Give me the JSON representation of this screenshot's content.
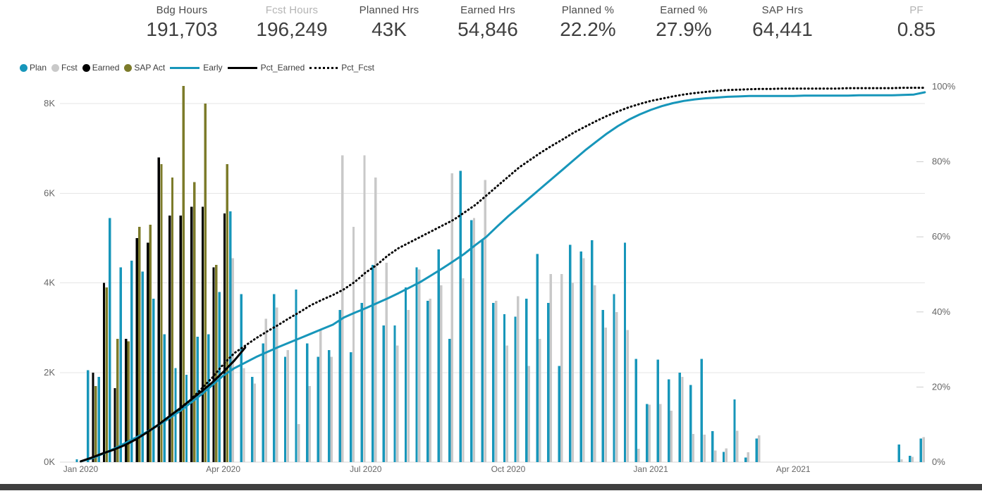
{
  "kpis": [
    {
      "label": "Bdg Hours",
      "value": "191,703",
      "muted": false
    },
    {
      "label": "Fcst Hours",
      "value": "196,249",
      "muted": true
    },
    {
      "label": "Planned Hrs",
      "value": "43K",
      "muted": false
    },
    {
      "label": "Earned Hrs",
      "value": "54,846",
      "muted": false
    },
    {
      "label": "Planned %",
      "value": "22.2%",
      "muted": false
    },
    {
      "label": "Earned %",
      "value": "27.9%",
      "muted": false
    },
    {
      "label": "SAP Hrs",
      "value": "64,441",
      "muted": false
    },
    {
      "label": "PF",
      "value": "0.85",
      "muted": true
    }
  ],
  "colors": {
    "plan": "#1796ba",
    "fcst": "#c9c9c9",
    "earned": "#000000",
    "sap": "#7c7b2a",
    "axis_text": "#666666",
    "grid": "#e6e6e6",
    "footer": "#3f3f3f"
  },
  "legend": [
    {
      "label": "Plan",
      "swatch": "dot",
      "color": "#1796ba"
    },
    {
      "label": "Fcst",
      "swatch": "dot",
      "color": "#c9c9c9"
    },
    {
      "label": "Earned",
      "swatch": "dot",
      "color": "#000000"
    },
    {
      "label": "SAP Act",
      "swatch": "dot",
      "color": "#7c7b2a"
    },
    {
      "label": "Early",
      "swatch": "line",
      "color": "#1796ba"
    },
    {
      "label": "Pct_Earned",
      "swatch": "line",
      "color": "#000000"
    },
    {
      "label": "Pct_Fcst",
      "swatch": "dotted",
      "color": "#000000"
    }
  ],
  "chart_data": {
    "type": "combo (weekly bars + cumulative % lines)",
    "x_ticks": [
      {
        "label": "Jan 2020",
        "week": 1
      },
      {
        "label": "Apr 2020",
        "week": 14
      },
      {
        "label": "Jul 2020",
        "week": 27
      },
      {
        "label": "Oct 2020",
        "week": 40
      },
      {
        "label": "Jan 2021",
        "week": 53
      },
      {
        "label": "Apr 2021",
        "week": 66
      }
    ],
    "y_left": {
      "title": "hours per week",
      "ticks": [
        "0K",
        "2K",
        "4K",
        "6K",
        "8K"
      ],
      "tick_values": [
        0,
        2000,
        4000,
        6000,
        8000
      ],
      "max": 8400
    },
    "y_right": {
      "title": "cumulative percent",
      "ticks": [
        "0%",
        "20%",
        "40%",
        "60%",
        "80%",
        "100%"
      ],
      "tick_values": [
        0,
        20,
        40,
        60,
        80,
        100
      ]
    },
    "grid": true,
    "legend_position": "top-left",
    "bar_series": [
      {
        "name": "Plan",
        "color": "#1796ba",
        "offset": -7.2,
        "values": [
          60,
          2050,
          1900,
          5450,
          4350,
          4500,
          4250,
          3650,
          2850,
          2100,
          1950,
          2800,
          2850,
          3800,
          5600,
          3750,
          1900,
          2650,
          3750,
          2350,
          3850,
          2650,
          2350,
          2500,
          3400,
          2450,
          3550,
          4400,
          3050,
          3050,
          3900,
          4350,
          3600,
          4750,
          2750,
          6500,
          5400,
          4950,
          3550,
          3300,
          3250,
          3650,
          4650,
          3550,
          2150,
          4850,
          4700,
          4950,
          3400,
          3750,
          4900,
          2300,
          1300,
          2290,
          1850,
          2000,
          1720,
          2300,
          690,
          230,
          1400,
          100,
          530,
          null,
          null,
          null,
          null,
          null,
          null,
          null,
          null,
          null,
          null,
          null,
          null,
          390,
          140,
          530
        ]
      },
      {
        "name": "Fcst",
        "color": "#c9c9c9",
        "offset": -3.5,
        "values": [
          null,
          null,
          null,
          null,
          null,
          null,
          null,
          null,
          null,
          null,
          null,
          null,
          null,
          null,
          4550,
          2100,
          1750,
          3200,
          3450,
          2500,
          850,
          1700,
          2950,
          2350,
          6850,
          5250,
          6850,
          6350,
          4450,
          2600,
          3400,
          4300,
          3650,
          3950,
          6450,
          4100,
          5450,
          6300,
          3600,
          2600,
          3700,
          2150,
          2750,
          4200,
          4200,
          4000,
          4550,
          3950,
          3000,
          3350,
          2950,
          300,
          1280,
          1300,
          1150,
          1900,
          630,
          610,
          260,
          310,
          700,
          220,
          600,
          null,
          null,
          null,
          null,
          null,
          null,
          null,
          null,
          null,
          null,
          null,
          null,
          60,
          120,
          560
        ]
      },
      {
        "name": "Earned",
        "color": "#000000",
        "offset": 0.2,
        "values": [
          null,
          2000,
          4000,
          1650,
          2750,
          5000,
          4900,
          6800,
          5500,
          5500,
          5700,
          5700,
          4350,
          5550,
          null,
          null,
          null,
          null,
          null,
          null,
          null,
          null,
          null,
          null,
          null,
          null,
          null,
          null,
          null,
          null,
          null,
          null,
          null,
          null,
          null,
          null,
          null,
          null,
          null,
          null,
          null,
          null,
          null,
          null,
          null,
          null,
          null,
          null,
          null,
          null,
          null,
          null,
          null,
          null,
          null,
          null,
          null,
          null,
          null,
          null,
          null,
          null,
          null,
          null,
          null,
          null,
          null,
          null,
          null,
          null,
          null,
          null,
          null,
          null,
          null,
          null,
          null,
          null
        ]
      },
      {
        "name": "SAP Act",
        "color": "#7c7b2a",
        "offset": 3.9,
        "values": [
          null,
          1700,
          3900,
          2750,
          2700,
          5250,
          5300,
          6650,
          6350,
          8400,
          6250,
          8000,
          4400,
          6650,
          null,
          null,
          null,
          null,
          null,
          null,
          null,
          null,
          null,
          null,
          null,
          null,
          null,
          null,
          null,
          null,
          null,
          null,
          null,
          null,
          null,
          null,
          null,
          null,
          null,
          null,
          null,
          null,
          null,
          null,
          null,
          null,
          null,
          null,
          null,
          null,
          null,
          null,
          null,
          null,
          null,
          null,
          null,
          null,
          null,
          null,
          null,
          null,
          null,
          null,
          null,
          null,
          null,
          null,
          null,
          null,
          null,
          null,
          null,
          null,
          null,
          null,
          null,
          null
        ]
      }
    ],
    "line_series": [
      {
        "name": "Early",
        "color": "#1796ba",
        "style": "solid",
        "width": 3,
        "values": [
          0.2,
          1,
          2.2,
          3.5,
          5,
          6.5,
          8,
          9.7,
          11.5,
          13.5,
          15.7,
          18,
          20.5,
          23,
          25,
          26.5,
          28,
          29.3,
          30.6,
          31.8,
          33,
          34.2,
          35.4,
          36.6,
          38.5,
          39.8,
          41,
          42.3,
          43.6,
          45,
          46.5,
          48,
          49.8,
          51.6,
          53.5,
          55.5,
          57.8,
          60,
          62.8,
          65.5,
          68,
          70.5,
          73,
          75.5,
          78,
          80.5,
          83,
          85.3,
          87.5,
          89.5,
          91.2,
          92.6,
          93.8,
          94.8,
          95.6,
          96.2,
          96.6,
          96.9,
          97.1,
          97.3,
          97.4,
          97.5,
          97.5,
          97.5,
          97.5,
          97.5,
          97.6,
          97.6,
          97.6,
          97.6,
          97.6,
          97.7,
          97.7,
          97.7,
          97.7,
          97.8,
          97.9,
          98.5
        ]
      },
      {
        "name": "Pct_Earned",
        "color": "#000000",
        "style": "solid",
        "width": 3,
        "values": [
          0.2,
          1.2,
          2.3,
          3.3,
          4.5,
          6,
          7.8,
          9.8,
          12,
          14.2,
          16.5,
          18.8,
          21.2,
          24,
          27,
          30.5,
          null,
          null,
          null,
          null,
          null,
          null,
          null,
          null,
          null,
          null,
          null,
          null,
          null,
          null,
          null,
          null,
          null,
          null,
          null,
          null,
          null,
          null,
          null,
          null,
          null,
          null,
          null,
          null,
          null,
          null,
          null,
          null,
          null,
          null,
          null,
          null,
          null,
          null,
          null,
          null,
          null,
          null,
          null,
          null,
          null,
          null,
          null,
          null,
          null,
          null,
          null,
          null,
          null,
          null,
          null,
          null,
          null,
          null,
          null,
          null,
          null
        ]
      },
      {
        "name": "Pct_Fcst",
        "color": "#000000",
        "style": "dotted",
        "width": 3,
        "values": [
          null,
          null,
          null,
          null,
          null,
          null,
          null,
          null,
          null,
          14,
          16.5,
          19.5,
          22.5,
          26,
          29,
          31,
          33,
          34.8,
          36.5,
          38.3,
          40,
          41.8,
          43.2,
          44.5,
          46,
          48,
          50.5,
          52.5,
          55,
          57,
          58.5,
          60,
          61.5,
          63,
          64.5,
          66.5,
          68.5,
          71,
          73.5,
          76,
          78.5,
          80.5,
          82.5,
          84.3,
          86,
          87.8,
          89.3,
          90.8,
          92.2,
          93.4,
          94.5,
          95.4,
          96.2,
          96.8,
          97.4,
          97.9,
          98.3,
          98.6,
          98.9,
          99.1,
          99.2,
          99.3,
          99.4,
          99.4,
          99.5,
          99.5,
          99.5,
          99.5,
          99.5,
          99.5,
          99.6,
          99.6,
          99.6,
          99.6,
          99.6,
          99.7,
          99.7,
          99.7
        ]
      }
    ]
  },
  "layout_note": "weekly schedule performance combo chart"
}
